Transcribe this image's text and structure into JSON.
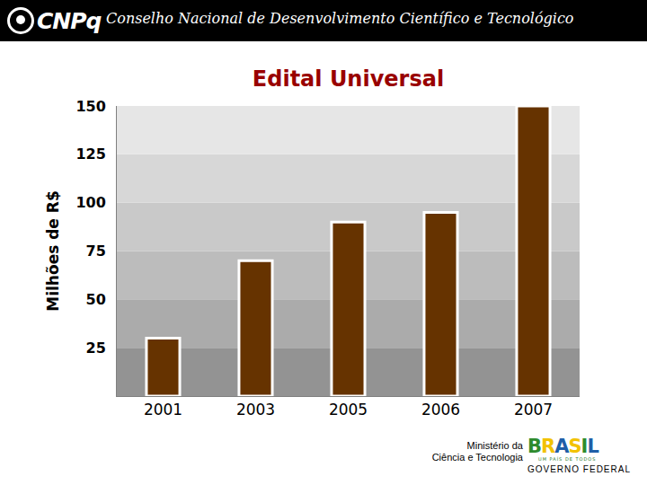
{
  "header": {
    "logo": "CNPq",
    "text": "Conselho Nacional de Desenvolvimento Científico e Tecnológico"
  },
  "chart_data": {
    "type": "bar",
    "title": "Edital Universal",
    "y_label": "Milhões de R$",
    "categories": [
      "2001",
      "2003",
      "2005",
      "2006",
      "2007"
    ],
    "values": [
      30,
      70,
      90,
      95,
      150
    ],
    "color": "#663300",
    "ylim": [
      0,
      150
    ],
    "yticks": [
      25,
      50,
      75,
      100,
      125,
      150
    ],
    "grid": false,
    "data_labels": false
  },
  "footer": {
    "ministry": [
      "Ministério da",
      "Ciência e Tecnologia"
    ],
    "brand": "BRASIL",
    "slogan": "UM PAÍS DE TODOS",
    "government": "GOVERNO FEDERAL"
  }
}
